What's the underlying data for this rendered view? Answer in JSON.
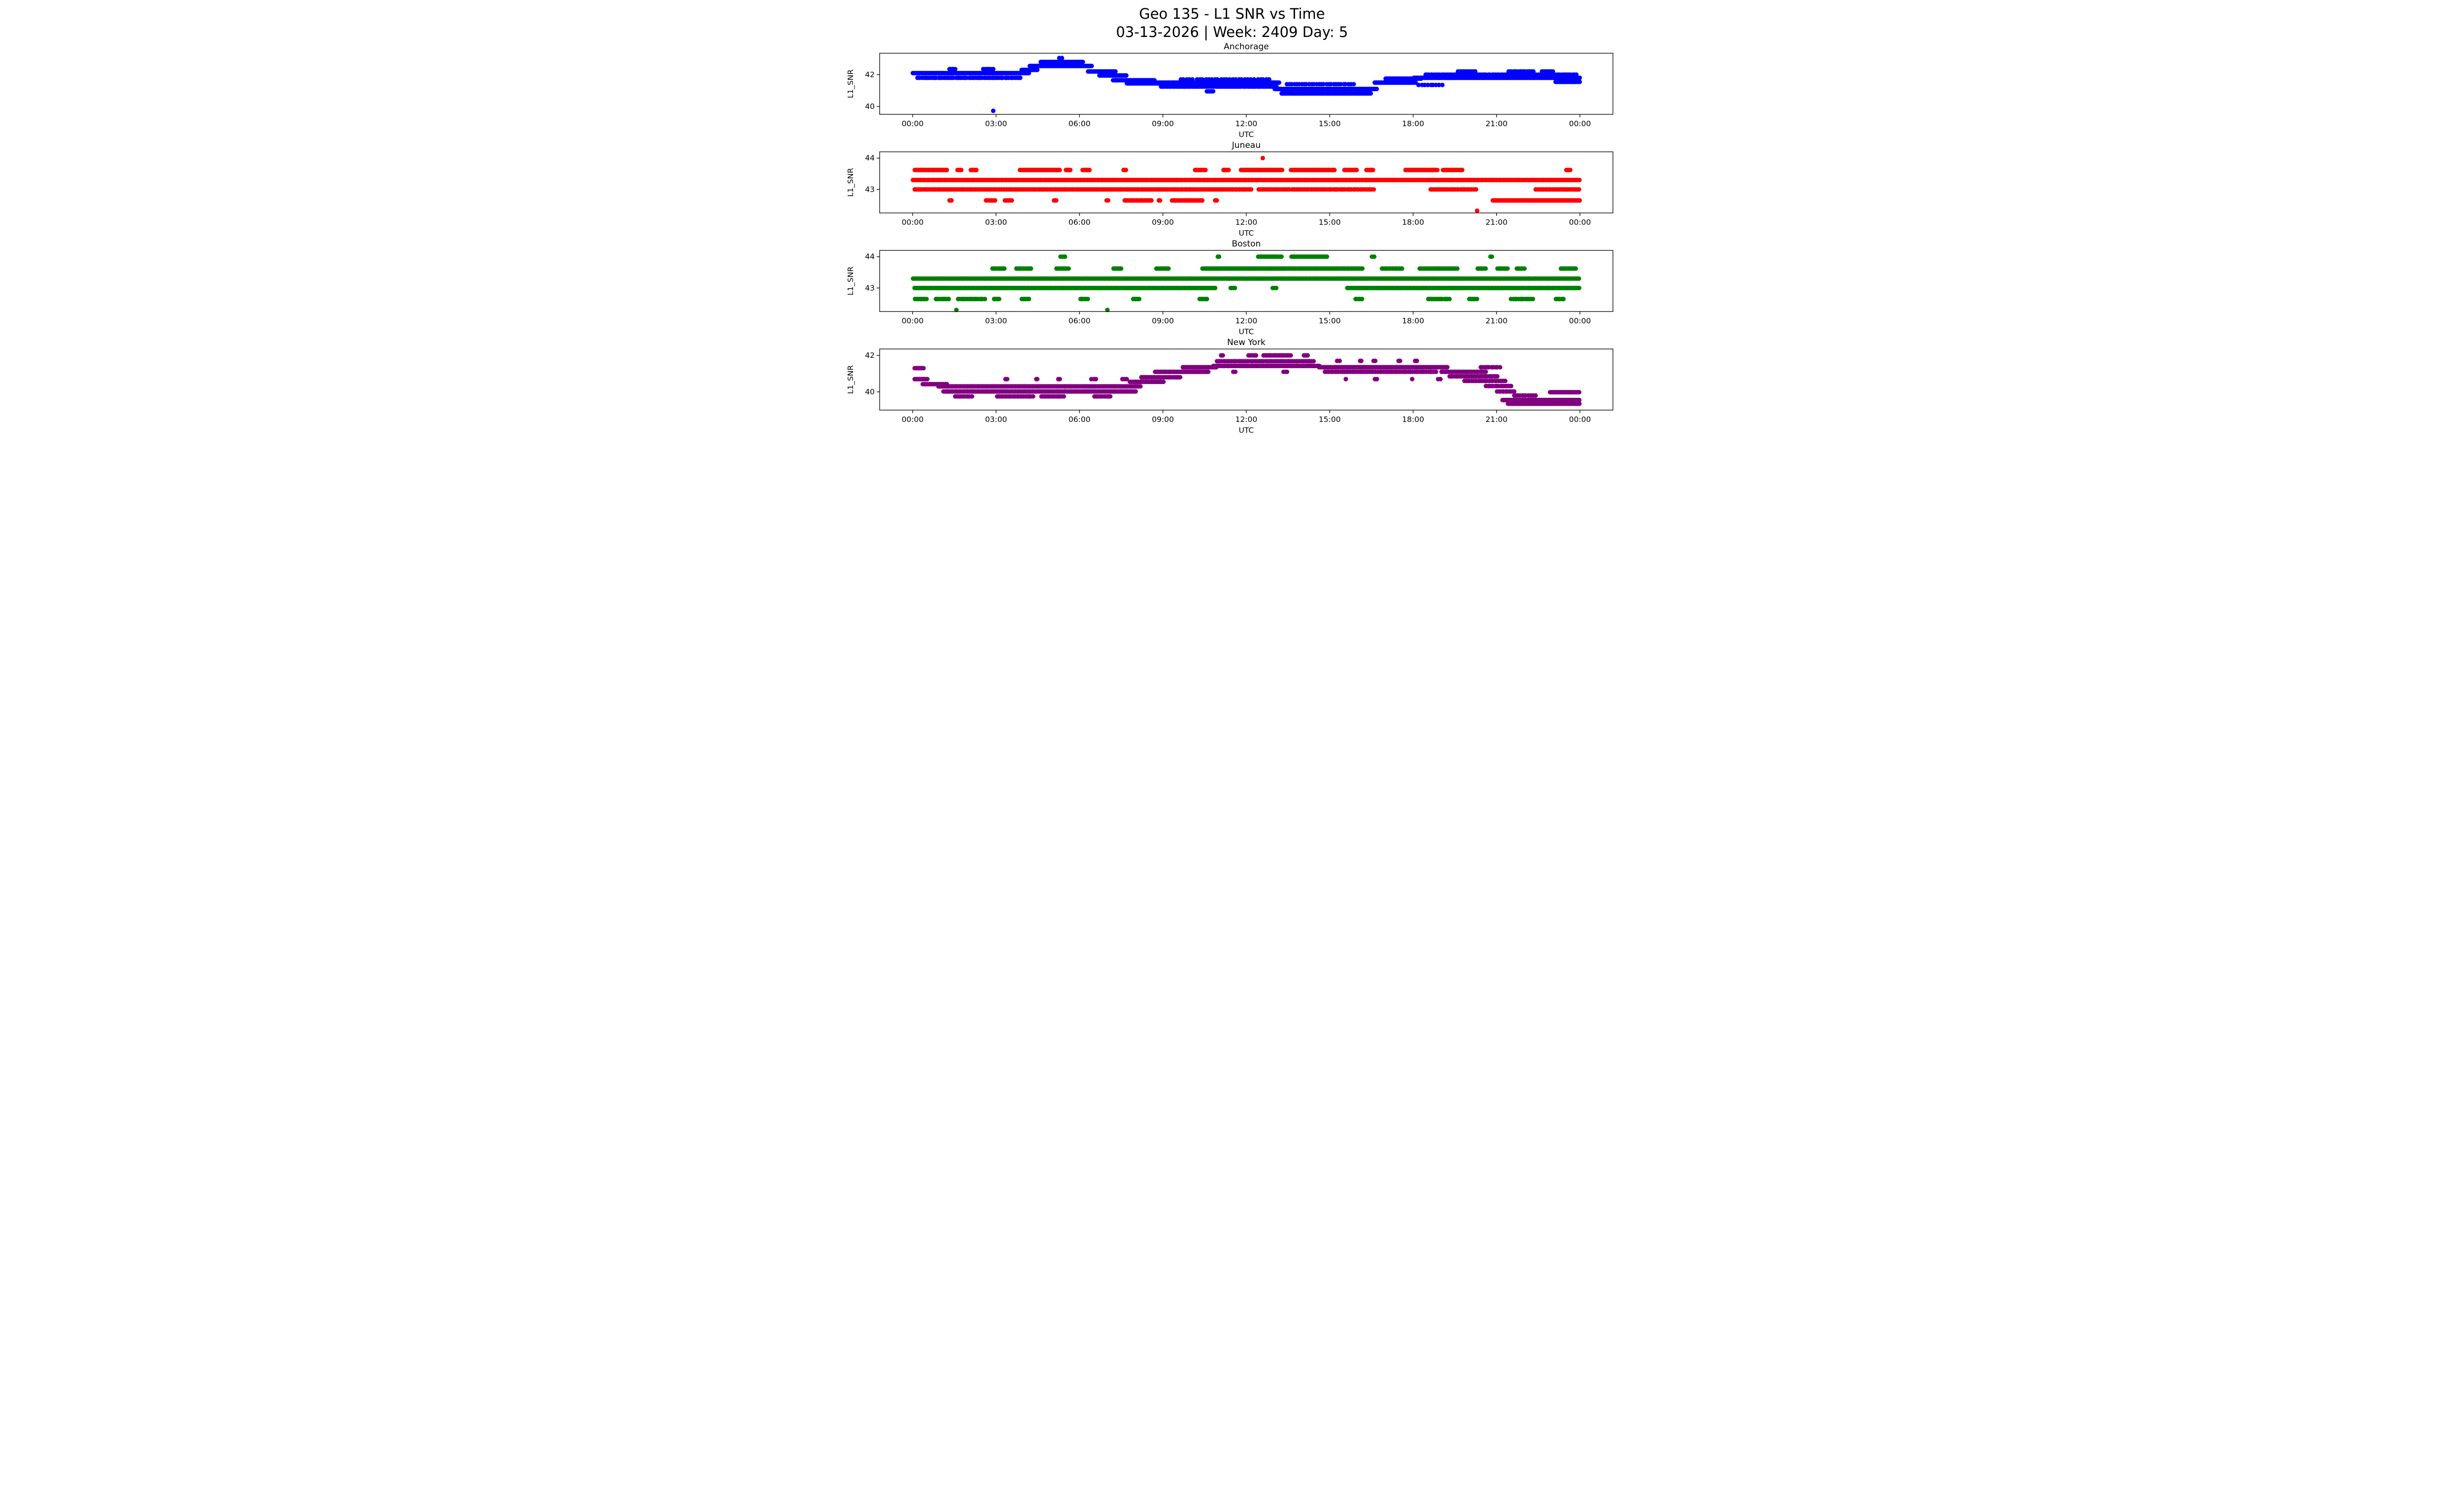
{
  "figure": {
    "title_line1": "Geo 135 - L1 SNR vs Time",
    "title_line2": "03-13-2026 | Week: 2409 Day: 5",
    "background": "#ffffff"
  },
  "chart_data": {
    "type": "scatter",
    "title": "Geo 135 - L1 SNR vs Time",
    "subtitle": "03-13-2026 | Week: 2409 Day: 5",
    "y_axis_label": "L1_SNR",
    "x_axis": {
      "label": "UTC",
      "range_hours": [
        0,
        24
      ],
      "tick_hours": [
        0,
        3,
        6,
        9,
        12,
        15,
        18,
        21,
        24
      ],
      "tick_labels": [
        "00:00",
        "03:00",
        "06:00",
        "09:00",
        "12:00",
        "15:00",
        "18:00",
        "21:00",
        "00:00"
      ]
    },
    "bands_format": [
      "t_start_hours",
      "t_end_hours",
      "snr_db",
      "n_points"
    ],
    "subplots": [
      {
        "title": "Anchorage",
        "color": "#0000ff",
        "ylim": [
          39.5,
          43.35
        ],
        "yticks": [
          40,
          42
        ],
        "point_bands": [
          [
            0.0,
            4.2,
            42.1,
            140
          ],
          [
            0.15,
            3.9,
            41.8,
            55
          ],
          [
            1.3,
            1.55,
            42.35,
            5
          ],
          [
            2.5,
            2.95,
            42.35,
            7
          ],
          [
            2.88,
            2.92,
            39.72,
            1
          ],
          [
            3.9,
            4.5,
            42.3,
            20
          ],
          [
            4.2,
            6.45,
            42.55,
            75
          ],
          [
            4.6,
            6.15,
            42.8,
            42
          ],
          [
            5.25,
            5.4,
            43.05,
            2
          ],
          [
            6.3,
            7.3,
            42.2,
            30
          ],
          [
            6.7,
            7.7,
            41.95,
            32
          ],
          [
            7.2,
            8.7,
            41.65,
            48
          ],
          [
            7.7,
            9.0,
            41.45,
            40
          ],
          [
            8.6,
            13.2,
            41.5,
            115
          ],
          [
            8.9,
            13.1,
            41.25,
            70
          ],
          [
            9.6,
            12.9,
            41.7,
            30
          ],
          [
            10.55,
            10.85,
            40.95,
            5
          ],
          [
            13.0,
            16.7,
            41.1,
            85
          ],
          [
            13.25,
            16.5,
            40.82,
            85
          ],
          [
            13.4,
            15.9,
            41.4,
            28
          ],
          [
            16.6,
            18.1,
            41.5,
            40
          ],
          [
            17.0,
            18.3,
            41.75,
            30
          ],
          [
            18.0,
            24.0,
            41.8,
            160
          ],
          [
            18.4,
            23.9,
            42.0,
            85
          ],
          [
            19.6,
            20.25,
            42.2,
            11
          ],
          [
            21.4,
            22.35,
            42.2,
            16
          ],
          [
            22.6,
            23.05,
            42.2,
            8
          ],
          [
            23.1,
            24.0,
            41.55,
            22
          ],
          [
            18.15,
            19.1,
            41.35,
            9
          ]
        ]
      },
      {
        "title": "Juneau",
        "color": "#ff0000",
        "ylim": [
          42.25,
          44.2
        ],
        "yticks": [
          43,
          44
        ],
        "point_bands": [
          [
            0.0,
            24.0,
            43.3,
            520
          ],
          [
            0.05,
            12.2,
            43.0,
            270
          ],
          [
            12.4,
            16.6,
            43.0,
            70
          ],
          [
            18.6,
            20.3,
            43.0,
            32
          ],
          [
            22.4,
            24.0,
            43.0,
            36
          ],
          [
            0.05,
            1.25,
            43.62,
            30
          ],
          [
            1.6,
            1.78,
            43.62,
            4
          ],
          [
            2.08,
            2.32,
            43.62,
            6
          ],
          [
            3.85,
            5.3,
            43.62,
            36
          ],
          [
            5.5,
            5.68,
            43.62,
            5
          ],
          [
            6.1,
            6.38,
            43.62,
            7
          ],
          [
            7.55,
            7.68,
            43.62,
            3
          ],
          [
            10.15,
            10.55,
            43.62,
            9
          ],
          [
            11.15,
            11.38,
            43.62,
            6
          ],
          [
            11.8,
            13.3,
            43.62,
            40
          ],
          [
            13.6,
            15.2,
            43.62,
            42
          ],
          [
            15.5,
            15.98,
            43.62,
            11
          ],
          [
            16.3,
            16.58,
            43.62,
            7
          ],
          [
            17.7,
            18.9,
            43.62,
            28
          ],
          [
            19.05,
            19.8,
            43.62,
            15
          ],
          [
            23.5,
            23.66,
            43.62,
            4
          ],
          [
            1.3,
            1.42,
            42.65,
            3
          ],
          [
            2.6,
            3.0,
            42.65,
            8
          ],
          [
            3.3,
            3.58,
            42.65,
            6
          ],
          [
            5.05,
            5.18,
            42.65,
            3
          ],
          [
            6.95,
            7.06,
            42.65,
            2
          ],
          [
            7.6,
            8.62,
            42.65,
            24
          ],
          [
            8.82,
            8.92,
            42.65,
            2
          ],
          [
            9.3,
            10.45,
            42.65,
            26
          ],
          [
            10.85,
            10.96,
            42.65,
            3
          ],
          [
            20.85,
            24.0,
            42.65,
            85
          ],
          [
            12.55,
            12.62,
            44.0,
            1
          ],
          [
            20.25,
            20.32,
            42.32,
            1
          ]
        ]
      },
      {
        "title": "Boston",
        "color": "#008000",
        "ylim": [
          42.25,
          44.2
        ],
        "yticks": [
          43,
          44
        ],
        "point_bands": [
          [
            0.0,
            24.0,
            43.3,
            520
          ],
          [
            0.05,
            10.9,
            43.0,
            250
          ],
          [
            11.4,
            11.62,
            43.0,
            4
          ],
          [
            12.9,
            13.12,
            43.0,
            3
          ],
          [
            15.6,
            24.0,
            43.0,
            200
          ],
          [
            2.85,
            3.32,
            43.62,
            11
          ],
          [
            3.7,
            4.28,
            43.62,
            13
          ],
          [
            5.15,
            5.62,
            43.62,
            11
          ],
          [
            7.2,
            7.52,
            43.62,
            8
          ],
          [
            8.75,
            9.22,
            43.62,
            11
          ],
          [
            10.4,
            16.2,
            43.62,
            165
          ],
          [
            16.85,
            17.62,
            43.62,
            17
          ],
          [
            18.2,
            19.6,
            43.62,
            30
          ],
          [
            20.3,
            20.62,
            43.62,
            7
          ],
          [
            21.0,
            21.42,
            43.62,
            9
          ],
          [
            21.7,
            22.02,
            43.62,
            7
          ],
          [
            23.3,
            23.88,
            43.62,
            13
          ],
          [
            5.3,
            5.52,
            44.0,
            4
          ],
          [
            10.95,
            11.06,
            44.0,
            2
          ],
          [
            12.4,
            13.28,
            44.0,
            20
          ],
          [
            13.6,
            14.92,
            44.0,
            30
          ],
          [
            16.5,
            16.62,
            44.0,
            2
          ],
          [
            20.75,
            20.86,
            44.0,
            2
          ],
          [
            0.05,
            0.52,
            42.65,
            9
          ],
          [
            0.8,
            1.32,
            42.65,
            9
          ],
          [
            1.6,
            2.62,
            42.65,
            17
          ],
          [
            2.9,
            3.12,
            42.65,
            5
          ],
          [
            3.9,
            4.22,
            42.65,
            6
          ],
          [
            6.0,
            6.32,
            42.65,
            6
          ],
          [
            7.9,
            8.18,
            42.65,
            5
          ],
          [
            10.3,
            10.62,
            42.65,
            6
          ],
          [
            15.9,
            16.18,
            42.65,
            5
          ],
          [
            18.5,
            19.32,
            42.65,
            14
          ],
          [
            20.0,
            20.32,
            42.65,
            6
          ],
          [
            21.5,
            22.32,
            42.65,
            13
          ],
          [
            23.1,
            23.42,
            42.65,
            6
          ],
          [
            1.55,
            1.66,
            42.3,
            1
          ],
          [
            6.95,
            7.06,
            42.3,
            1
          ]
        ]
      },
      {
        "title": "New York",
        "color": "#800080",
        "ylim": [
          39.0,
          42.35
        ],
        "yticks": [
          40,
          42
        ],
        "point_bands": [
          [
            0.05,
            0.4,
            41.3,
            8
          ],
          [
            0.05,
            0.55,
            40.7,
            12
          ],
          [
            0.35,
            1.25,
            40.42,
            18
          ],
          [
            0.9,
            8.2,
            40.3,
            180
          ],
          [
            1.1,
            8.05,
            40.02,
            175
          ],
          [
            1.5,
            2.15,
            39.75,
            11
          ],
          [
            3.0,
            4.35,
            39.75,
            24
          ],
          [
            4.6,
            5.45,
            39.75,
            15
          ],
          [
            6.5,
            7.15,
            39.75,
            11
          ],
          [
            3.3,
            3.42,
            40.7,
            2
          ],
          [
            4.4,
            4.52,
            40.7,
            2
          ],
          [
            5.2,
            5.32,
            40.7,
            2
          ],
          [
            6.4,
            6.62,
            40.7,
            3
          ],
          [
            7.5,
            7.72,
            40.7,
            3
          ],
          [
            7.8,
            9.05,
            40.55,
            24
          ],
          [
            8.2,
            9.65,
            40.8,
            30
          ],
          [
            8.7,
            10.65,
            41.1,
            52
          ],
          [
            9.7,
            10.95,
            41.35,
            28
          ],
          [
            10.8,
            14.65,
            41.42,
            100
          ],
          [
            10.9,
            14.45,
            41.68,
            58
          ],
          [
            11.05,
            11.18,
            42.0,
            2
          ],
          [
            12.05,
            12.38,
            42.0,
            7
          ],
          [
            12.6,
            13.62,
            42.0,
            24
          ],
          [
            14.05,
            14.22,
            42.0,
            4
          ],
          [
            11.5,
            11.62,
            41.1,
            2
          ],
          [
            13.3,
            13.52,
            41.1,
            3
          ],
          [
            14.6,
            19.25,
            41.35,
            120
          ],
          [
            14.8,
            18.85,
            41.1,
            58
          ],
          [
            15.25,
            15.38,
            41.7,
            2
          ],
          [
            16.05,
            16.18,
            41.7,
            2
          ],
          [
            16.55,
            16.68,
            41.7,
            2
          ],
          [
            17.45,
            17.58,
            41.7,
            2
          ],
          [
            18.05,
            18.18,
            41.7,
            2
          ],
          [
            15.55,
            15.66,
            40.7,
            1
          ],
          [
            16.6,
            16.72,
            40.7,
            2
          ],
          [
            17.9,
            18.0,
            40.7,
            1
          ],
          [
            18.85,
            19.02,
            40.7,
            2
          ],
          [
            19.0,
            20.65,
            41.1,
            36
          ],
          [
            19.3,
            21.05,
            40.85,
            30
          ],
          [
            19.8,
            21.35,
            40.6,
            24
          ],
          [
            20.4,
            21.15,
            41.35,
            10
          ],
          [
            20.6,
            21.55,
            40.32,
            15
          ],
          [
            21.0,
            21.65,
            40.02,
            11
          ],
          [
            21.2,
            24.0,
            39.55,
            95
          ],
          [
            21.4,
            24.0,
            39.35,
            85
          ],
          [
            21.6,
            22.45,
            39.8,
            12
          ],
          [
            22.9,
            24.0,
            39.98,
            30
          ]
        ]
      }
    ]
  }
}
